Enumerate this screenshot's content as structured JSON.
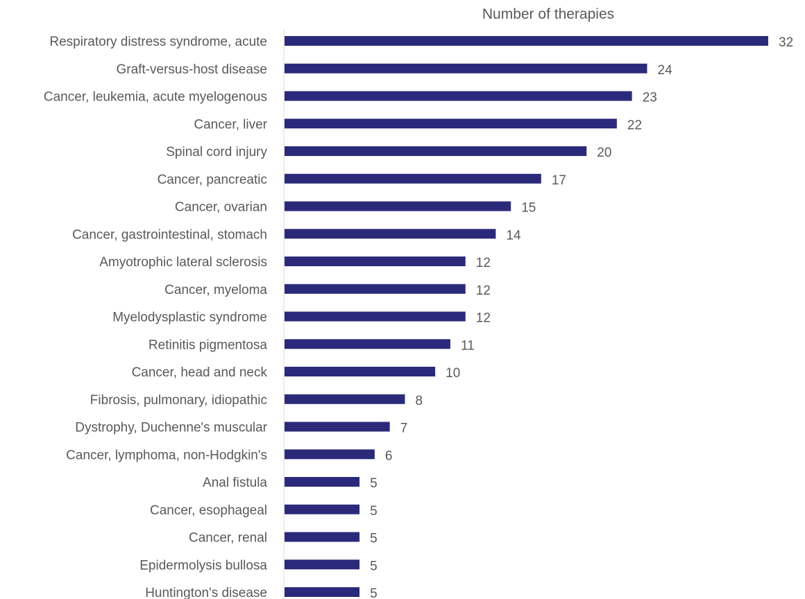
{
  "chart_data": {
    "type": "bar",
    "orientation": "horizontal",
    "title": "Number of therapies",
    "xlabel": "Number of therapies",
    "ylabel": "",
    "grid": false,
    "legend": "none",
    "xlim": [
      0,
      32
    ],
    "categories": [
      "Respiratory distress syndrome, acute",
      "Graft-versus-host disease",
      "Cancer, leukemia, acute myelogenous",
      "Cancer, liver",
      "Spinal cord injury",
      "Cancer, pancreatic",
      "Cancer, ovarian",
      "Cancer, gastrointestinal, stomach",
      "Amyotrophic lateral sclerosis",
      "Cancer, myeloma",
      "Myelodysplastic syndrome",
      "Retinitis pigmentosa",
      "Cancer, head and neck",
      "Fibrosis, pulmonary, idiopathic",
      "Dystrophy, Duchenne's muscular",
      "Cancer, lymphoma, non-Hodgkin's",
      "Anal fistula",
      "Cancer, esophageal",
      "Cancer, renal",
      "Epidermolysis bullosa",
      "Huntington's disease"
    ],
    "values": [
      32,
      24,
      23,
      22,
      20,
      17,
      15,
      14,
      12,
      12,
      12,
      11,
      10,
      8,
      7,
      6,
      5,
      5,
      5,
      5,
      5
    ],
    "colors": {
      "bar": "#2b2a7a",
      "axis": "#d9d9d9",
      "text": "#595959"
    }
  }
}
